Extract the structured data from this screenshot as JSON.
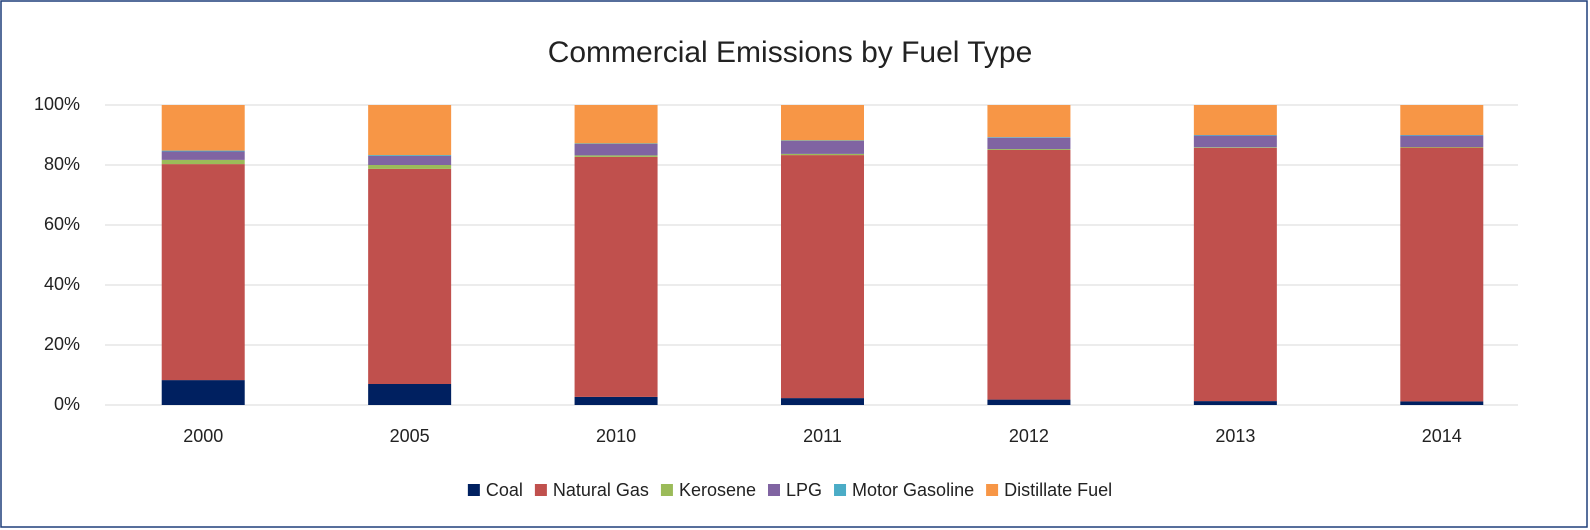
{
  "chart_data": {
    "type": "stacked_bar",
    "title": "Commercial Emissions by Fuel Type",
    "categories": [
      "2000",
      "2005",
      "2010",
      "2011",
      "2012",
      "2013",
      "2014"
    ],
    "series": [
      {
        "name": "Coal",
        "color": "#002060",
        "values": [
          8.3,
          7,
          2.7,
          2.3,
          1.8,
          1.3,
          1.2
        ]
      },
      {
        "name": "Natural Gas",
        "color": "#c0504d",
        "values": [
          72,
          71.7,
          80,
          81,
          83.2,
          84.4,
          84.6
        ]
      },
      {
        "name": "Kerosene",
        "color": "#9bbb59",
        "values": [
          1.4,
          1.3,
          0.5,
          0.4,
          0.3,
          0.2,
          0.2
        ]
      },
      {
        "name": "LPG",
        "color": "#8064a2",
        "values": [
          2.8,
          3,
          3.8,
          4.3,
          3.8,
          3.9,
          3.8
        ]
      },
      {
        "name": "Motor Gasoline",
        "color": "#4bacc6",
        "values": [
          0.3,
          0.3,
          0.2,
          0.2,
          0.2,
          0.2,
          0.2
        ]
      },
      {
        "name": "Distillate Fuel",
        "color": "#f79646",
        "values": [
          15.2,
          16.7,
          12.8,
          11.8,
          10.7,
          10,
          10
        ]
      }
    ],
    "ylim": [
      0,
      100
    ],
    "yticks": [
      {
        "value": 0,
        "label": "0%"
      },
      {
        "value": 20,
        "label": "20%"
      },
      {
        "value": 40,
        "label": "40%"
      },
      {
        "value": 60,
        "label": "60%"
      },
      {
        "value": 80,
        "label": "80%"
      },
      {
        "value": 100,
        "label": "100%"
      }
    ],
    "grid": true,
    "legend": "bottom"
  }
}
